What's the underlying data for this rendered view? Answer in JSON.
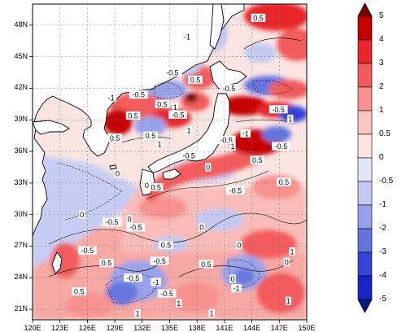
{
  "chart_data": {
    "type": "heatmap",
    "title": "",
    "xlabel": "",
    "ylabel": "",
    "x_ticks": [
      "120E",
      "123E",
      "126E",
      "129E",
      "132E",
      "135E",
      "138E",
      "141E",
      "144E",
      "147E",
      "150E"
    ],
    "y_ticks": [
      "48N",
      "45N",
      "42N",
      "39N",
      "36N",
      "33N",
      "30N",
      "27N",
      "24N",
      "21N"
    ],
    "xlim": [
      120,
      150
    ],
    "ylim": [
      20,
      50
    ],
    "colorbar": {
      "ticks": [
        "5",
        "4",
        "3",
        "2",
        "1",
        "0.5",
        "0",
        "-0.5",
        "-1",
        "-2",
        "-3",
        "-4",
        "-5"
      ],
      "levels": [
        5,
        4,
        3,
        2,
        1,
        0.5,
        0,
        -0.5,
        -1,
        -2,
        -3,
        -4,
        -5
      ],
      "colors": [
        "#7a0000",
        "#c40000",
        "#e8262b",
        "#f25b5b",
        "#f7928f",
        "#fac4c0",
        "#fbe4e2",
        "#e3e6f8",
        "#c3c9f2",
        "#97a2ea",
        "#6574dd",
        "#3344d8",
        "#1a22c8",
        "#001a86"
      ]
    },
    "contour_labels": [
      {
        "text": "0.5",
        "lon": 144.7,
        "lat": 48.7
      },
      {
        "text": "-1",
        "lon": 136.9,
        "lat": 46.9
      },
      {
        "text": "-0.5",
        "lon": 135.3,
        "lat": 43.5
      },
      {
        "text": "0.5",
        "lon": 137.8,
        "lat": 42.8
      },
      {
        "text": "-0.5",
        "lon": 141.5,
        "lat": 42.0
      },
      {
        "text": "-0.5",
        "lon": 131.6,
        "lat": 41.4
      },
      {
        "text": "-1",
        "lon": 128.6,
        "lat": 41.1
      },
      {
        "text": "0.5",
        "lon": 131.0,
        "lat": 39.4
      },
      {
        "text": "0.5",
        "lon": 134.2,
        "lat": 40.5
      },
      {
        "text": "1",
        "lon": 135.6,
        "lat": 40.2
      },
      {
        "text": "-0.5",
        "lon": 135.9,
        "lat": 39.5
      },
      {
        "text": "-0.5",
        "lon": 146.9,
        "lat": 40.0
      },
      {
        "text": "1",
        "lon": 148.2,
        "lat": 39.1
      },
      {
        "text": "1",
        "lon": 137.1,
        "lat": 38.0
      },
      {
        "text": "0.5",
        "lon": 132.9,
        "lat": 37.5
      },
      {
        "text": "1",
        "lon": 133.9,
        "lat": 36.7
      },
      {
        "text": "-0.5",
        "lon": 141.2,
        "lat": 37.1
      },
      {
        "text": "1",
        "lon": 141.9,
        "lat": 36.5
      },
      {
        "text": "-1",
        "lon": 143.3,
        "lat": 37.7
      },
      {
        "text": "-0.5",
        "lon": 147.2,
        "lat": 36.5
      },
      {
        "text": "0.5",
        "lon": 129.0,
        "lat": 37.3
      },
      {
        "text": "-0.5",
        "lon": 137.1,
        "lat": 35.6
      },
      {
        "text": "0",
        "lon": 139.2,
        "lat": 34.5
      },
      {
        "text": "0.5",
        "lon": 144.6,
        "lat": 35.2
      },
      {
        "text": "0",
        "lon": 129.3,
        "lat": 33.9
      },
      {
        "text": "0",
        "lon": 132.5,
        "lat": 32.8
      },
      {
        "text": "0.5",
        "lon": 133.5,
        "lat": 32.6
      },
      {
        "text": "0.5",
        "lon": 147.5,
        "lat": 33.1
      },
      {
        "text": "-0.5",
        "lon": 142.2,
        "lat": 32.3
      },
      {
        "text": "0",
        "lon": 125.4,
        "lat": 30.0
      },
      {
        "text": "-0.5",
        "lon": 128.7,
        "lat": 29.3
      },
      {
        "text": "0",
        "lon": 130.6,
        "lat": 29.6
      },
      {
        "text": "-0.5",
        "lon": 131.3,
        "lat": 28.8
      },
      {
        "text": "0",
        "lon": 138.5,
        "lat": 28.8
      },
      {
        "text": "0.5",
        "lon": 134.6,
        "lat": 27.1
      },
      {
        "text": "0",
        "lon": 142.6,
        "lat": 27.1
      },
      {
        "text": "-0.5",
        "lon": 126.0,
        "lat": 26.6
      },
      {
        "text": "0.5",
        "lon": 128.1,
        "lat": 25.4
      },
      {
        "text": "-0.5",
        "lon": 133.9,
        "lat": 25.6
      },
      {
        "text": "0.5",
        "lon": 139.0,
        "lat": 25.3
      },
      {
        "text": "-0.5",
        "lon": 131.0,
        "lat": 24.0
      },
      {
        "text": "-1",
        "lon": 133.5,
        "lat": 23.6
      },
      {
        "text": "0",
        "lon": 141.9,
        "lat": 23.9
      },
      {
        "text": "-1",
        "lon": 142.3,
        "lat": 23.0
      },
      {
        "text": "0",
        "lon": 147.8,
        "lat": 25.5
      },
      {
        "text": "1",
        "lon": 148.4,
        "lat": 26.5
      },
      {
        "text": "0.5",
        "lon": 125.1,
        "lat": 22.7
      },
      {
        "text": "-0.5",
        "lon": 134.7,
        "lat": 22.5
      },
      {
        "text": "1",
        "lon": 136.0,
        "lat": 21.6
      },
      {
        "text": "1",
        "lon": 148.0,
        "lat": 21.8
      },
      {
        "text": "1",
        "lon": 131.5,
        "lat": 20.6
      },
      {
        "text": "1",
        "lon": 139.6,
        "lat": 20.6
      }
    ]
  }
}
